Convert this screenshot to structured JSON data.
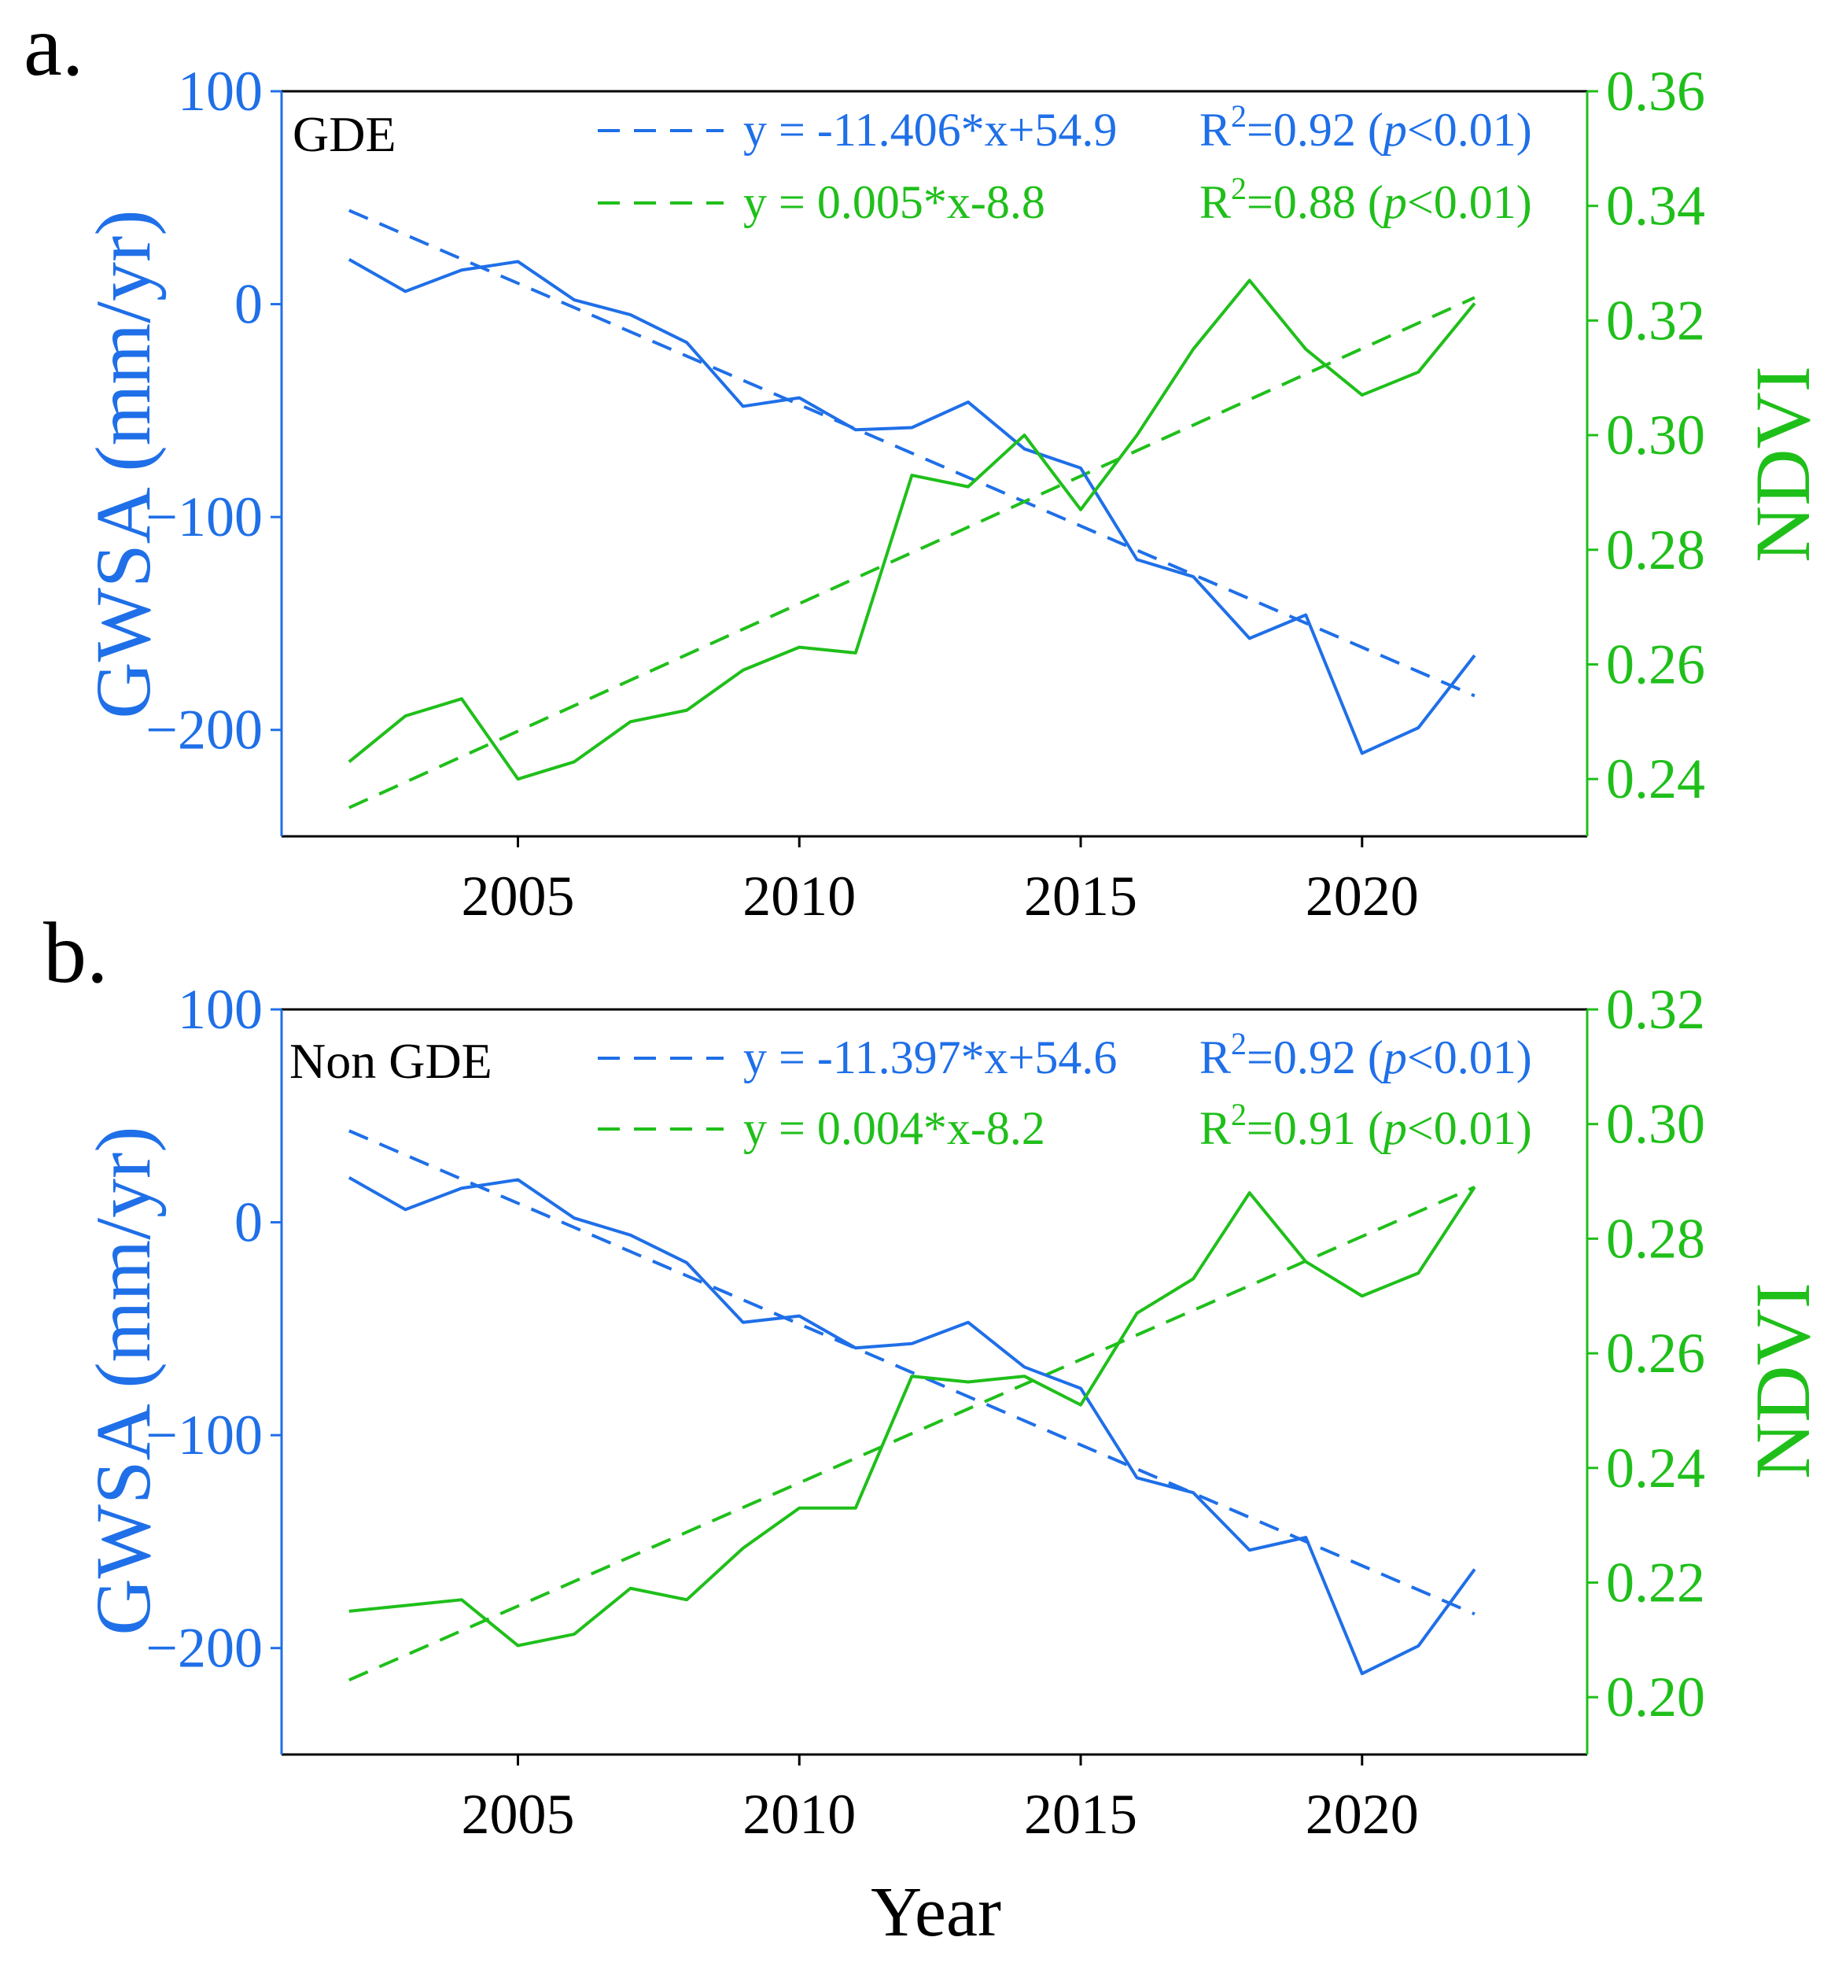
{
  "colors": {
    "gwsa": "#1f6fe8",
    "ndvi": "#1fbf1a",
    "axis": "#000000"
  },
  "xlabel": "Year",
  "panels": [
    {
      "label": "a.",
      "region": "GDE",
      "left_ylabel": "GWSA (mm/yr)",
      "right_ylabel": "NDVI",
      "legend": {
        "gwsa_eq": "y = -11.406*x+54.9",
        "gwsa_r2": "R²=0.92 (p<0.01)",
        "ndvi_eq": "y = 0.005*x-8.8",
        "ndvi_r2": "R²=0.88 (p<0.01)"
      }
    },
    {
      "label": "b.",
      "region": "Non GDE",
      "left_ylabel": "GWSA (mm/yr)",
      "right_ylabel": "NDVI",
      "legend": {
        "gwsa_eq": "y = -11.397*x+54.6",
        "gwsa_r2": "R²=0.92 (p<0.01)",
        "ndvi_eq": "y = 0.004*x-8.2",
        "ndvi_r2": "R²=0.91 (p<0.01)"
      }
    }
  ],
  "chart_data": [
    {
      "type": "line",
      "title": "GDE",
      "xlabel": "Year",
      "ylabel": "GWSA (mm/yr)",
      "y2label": "NDVI",
      "xlim": [
        2000.8,
        2024.0
      ],
      "ylim": [
        -250,
        100
      ],
      "y2lim": [
        0.23,
        0.36
      ],
      "xticks": [
        2005,
        2010,
        2015,
        2020
      ],
      "yticks": [
        100,
        0,
        -100,
        -200
      ],
      "ytick_labels": [
        "100",
        "0",
        "−100",
        "−200"
      ],
      "y2ticks": [
        0.24,
        0.26,
        0.28,
        0.3,
        0.32,
        0.34,
        0.36
      ],
      "y2tick_labels": [
        "0.24",
        "0.26",
        "0.28",
        "0.30",
        "0.32",
        "0.34",
        "0.36"
      ],
      "x": [
        2002,
        2003,
        2004,
        2005,
        2006,
        2007,
        2008,
        2009,
        2010,
        2011,
        2012,
        2013,
        2014,
        2015,
        2016,
        2017,
        2018,
        2019,
        2020,
        2021,
        2022
      ],
      "series": [
        {
          "name": "GWSA",
          "axis": "left",
          "values": [
            21,
            6,
            16,
            20,
            2,
            -5,
            -18,
            -48,
            -44,
            -59,
            -58,
            -46,
            -68,
            -77,
            -120,
            -128,
            -157,
            -146,
            -211,
            -199,
            -165
          ]
        },
        {
          "name": "NDVI",
          "axis": "right",
          "values": [
            0.243,
            0.251,
            0.254,
            0.24,
            0.243,
            0.25,
            0.252,
            0.259,
            0.263,
            0.262,
            0.293,
            0.291,
            0.3,
            0.287,
            0.3,
            0.315,
            0.327,
            0.315,
            0.307,
            0.311,
            0.323
          ]
        }
      ],
      "trendlines": [
        {
          "name": "GWSA trend",
          "axis": "left",
          "x": [
            2002,
            2022
          ],
          "y": [
            44,
            -184
          ]
        },
        {
          "name": "NDVI trend",
          "axis": "right",
          "x": [
            2002,
            2022
          ],
          "y": [
            0.235,
            0.324
          ]
        }
      ]
    },
    {
      "type": "line",
      "title": "Non GDE",
      "xlabel": "Year",
      "ylabel": "GWSA (mm/yr)",
      "y2label": "NDVI",
      "xlim": [
        2000.8,
        2024.0
      ],
      "ylim": [
        -250,
        100
      ],
      "y2lim": [
        0.19,
        0.32
      ],
      "xticks": [
        2005,
        2010,
        2015,
        2020
      ],
      "yticks": [
        100,
        0,
        -100,
        -200
      ],
      "ytick_labels": [
        "100",
        "0",
        "−100",
        "−200"
      ],
      "y2ticks": [
        0.2,
        0.22,
        0.24,
        0.26,
        0.28,
        0.3,
        0.32
      ],
      "y2tick_labels": [
        "0.20",
        "0.22",
        "0.24",
        "0.26",
        "0.28",
        "0.30",
        "0.32"
      ],
      "x": [
        2002,
        2003,
        2004,
        2005,
        2006,
        2007,
        2008,
        2009,
        2010,
        2011,
        2012,
        2013,
        2014,
        2015,
        2016,
        2017,
        2018,
        2019,
        2020,
        2021,
        2022
      ],
      "series": [
        {
          "name": "GWSA",
          "axis": "left",
          "values": [
            21,
            6,
            16,
            20,
            2,
            -6,
            -19,
            -47,
            -44,
            -59,
            -57,
            -47,
            -68,
            -78,
            -120,
            -127,
            -154,
            -148,
            -212,
            -199,
            -163
          ]
        },
        {
          "name": "NDVI",
          "axis": "right",
          "values": [
            0.215,
            0.216,
            0.217,
            0.209,
            0.211,
            0.219,
            0.217,
            0.226,
            0.233,
            0.233,
            0.256,
            0.255,
            0.256,
            0.251,
            0.267,
            0.273,
            0.288,
            0.276,
            0.27,
            0.274,
            0.289
          ]
        }
      ],
      "trendlines": [
        {
          "name": "GWSA trend",
          "axis": "left",
          "x": [
            2002,
            2022
          ],
          "y": [
            43,
            -184
          ]
        },
        {
          "name": "NDVI trend",
          "axis": "right",
          "x": [
            2002,
            2022
          ],
          "y": [
            0.203,
            0.289
          ]
        }
      ]
    }
  ]
}
